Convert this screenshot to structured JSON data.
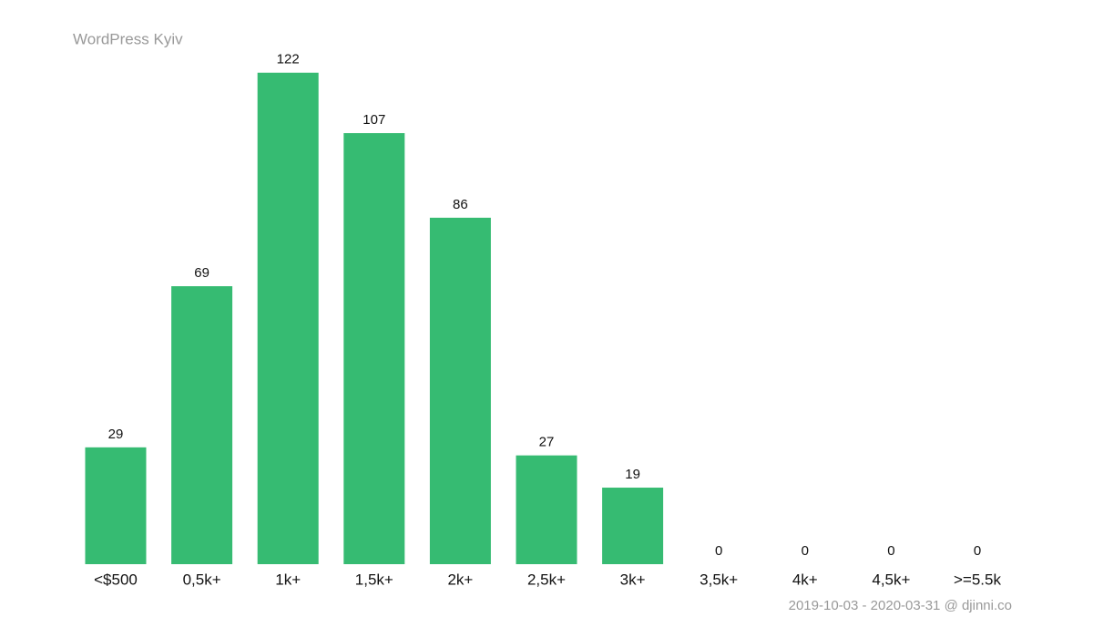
{
  "chart_data": {
    "type": "bar",
    "title": "WordPress Kyiv",
    "footer": "2019-10-03 - 2020-03-31 @ djinni.co",
    "categories": [
      "<$500",
      "0,5k+",
      "1k+",
      "1,5k+",
      "2k+",
      "2,5k+",
      "3k+",
      "3,5k+",
      "4k+",
      "4,5k+",
      ">=5.5k"
    ],
    "values": [
      29,
      69,
      122,
      107,
      86,
      27,
      19,
      0,
      0,
      0,
      0
    ],
    "color": "#36bb72"
  }
}
